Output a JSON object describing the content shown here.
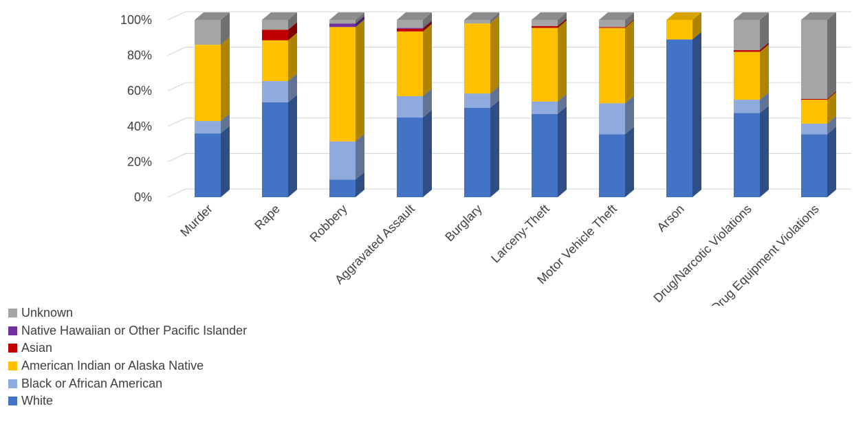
{
  "chart_data": {
    "type": "bar",
    "stacked": true,
    "percent_stacked": true,
    "three_d": true,
    "title": "",
    "xlabel": "",
    "ylabel": "",
    "ylim": [
      0,
      100
    ],
    "yticks": [
      "0%",
      "20%",
      "40%",
      "60%",
      "80%",
      "100%"
    ],
    "grid": true,
    "legend_position": "bottom-left",
    "categories": [
      "Murder",
      "Rape",
      "Robbery",
      "Aggravated Assault",
      "Burglary",
      "Larceny-Theft",
      "Motor Vehicle Theft",
      "Arson",
      "Drug/Narcotic Violations",
      "Drug Equipment Violations"
    ],
    "series": [
      {
        "name": "White",
        "color": "#4472C4",
        "values": [
          36,
          53.5,
          10,
          45,
          50.5,
          47,
          35.5,
          89,
          47.5,
          35.5
        ]
      },
      {
        "name": "Black or African American",
        "color": "#8FAADC",
        "values": [
          7,
          12,
          21.5,
          12,
          8,
          7,
          17.5,
          0,
          7.5,
          6
        ]
      },
      {
        "name": "American Indian or Alaska Native",
        "color": "#FFC000",
        "values": [
          43,
          23,
          64.5,
          36.5,
          39.5,
          41.5,
          42.5,
          11,
          27,
          13.5
        ]
      },
      {
        "name": "Asian",
        "color": "#C00000",
        "values": [
          0,
          6,
          0,
          1.5,
          0,
          1,
          0.5,
          0,
          1,
          0.5
        ]
      },
      {
        "name": "Native Hawaiian or Other Pacific Islander",
        "color": "#7030A0",
        "values": [
          0,
          0,
          2,
          0.5,
          0,
          0,
          0,
          0,
          0,
          0
        ]
      },
      {
        "name": "Unknown",
        "color": "#A5A5A5",
        "values": [
          14,
          5.5,
          2,
          4.5,
          2,
          3.5,
          4,
          0,
          17,
          44.5
        ]
      }
    ]
  }
}
